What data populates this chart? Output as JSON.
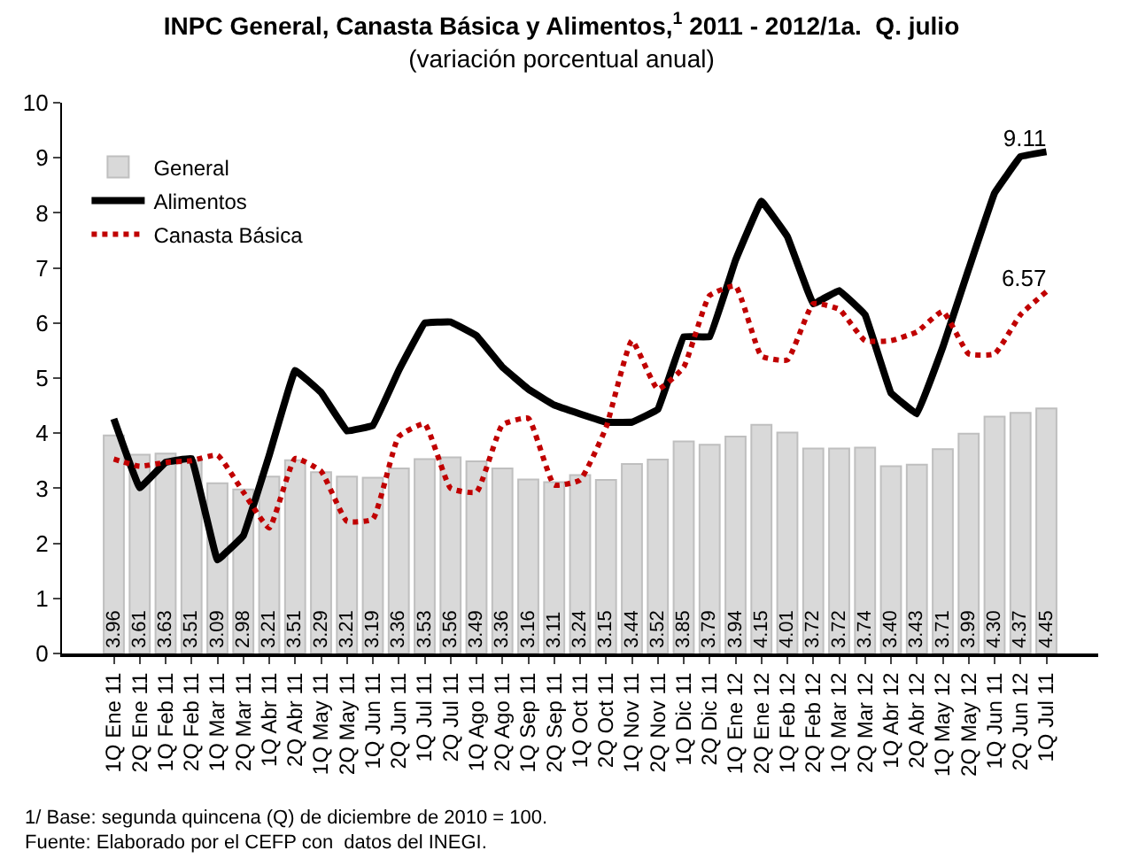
{
  "chart_data": {
    "type": "bar",
    "title": "INPC General, Canasta Básica y Alimentos,$^{1}$ 2011 - 2012/1a.  Q. julio",
    "subtitle": "(variación porcentual anual)",
    "categories": [
      "1Q Ene 11",
      "2Q Ene 11",
      "1Q Feb 11",
      "2Q Feb 11",
      "1Q Mar 11",
      "2Q Mar 11",
      "1Q Abr 11",
      "2Q Abr 11",
      "1Q May 11",
      "2Q May 11",
      "1Q Jun 11",
      "2Q Jun 11",
      "1Q Jul 11",
      "2Q Jul 11",
      "1Q Ago 11",
      "2Q Ago 11",
      "1Q Sep 11",
      "2Q Sep 11",
      "1Q Oct 11",
      "2Q Oct 11",
      "1Q Nov 11",
      "2Q Nov 11",
      "1Q Dic 11",
      "2Q Dic 11",
      "1Q Ene 12",
      "2Q Ene 12",
      "1Q Feb 12",
      "2Q Feb 12",
      "1Q Mar 12",
      "2Q Mar 12",
      "1Q Abr 12",
      "2Q Abr 12",
      "1Q May 12",
      "2Q May 12",
      "1Q Jun 11",
      "2Q Jun 12",
      "1Q Jul 11"
    ],
    "series": [
      {
        "name": "General",
        "color": "#d9d9d9",
        "values": [
          3.96,
          3.61,
          3.63,
          3.51,
          3.09,
          2.98,
          3.21,
          3.51,
          3.29,
          3.21,
          3.19,
          3.36,
          3.53,
          3.56,
          3.49,
          3.36,
          3.16,
          3.11,
          3.24,
          3.15,
          3.44,
          3.52,
          3.85,
          3.79,
          3.94,
          4.15,
          4.01,
          3.72,
          3.72,
          3.74,
          3.4,
          3.43,
          3.71,
          3.99,
          4.3,
          4.37,
          4.45
        ],
        "value_labels": [
          "3.96",
          "3.61",
          "3.63",
          "3.51",
          "3.09",
          "2.98",
          "3.21",
          "3.51",
          "3.29",
          "3.21",
          "3.19",
          "3.36",
          "3.53",
          "3.56",
          "3.49",
          "3.36",
          "3.16",
          "3.11",
          "3.24",
          "3.15",
          "3.44",
          "3.52",
          "3.85",
          "3.79",
          "3.94",
          "4.15",
          "4.01",
          "3.72",
          "3.72",
          "3.74",
          "3.40",
          "3.43",
          "3.71",
          "3.99",
          "4.30",
          "4.37",
          "4.45"
        ]
      },
      {
        "name": "Alimentos",
        "type": "line",
        "color": "#000000",
        "line_style": "solid",
        "values": [
          4.26,
          3.01,
          3.47,
          3.54,
          1.7,
          2.14,
          3.6,
          5.14,
          4.74,
          4.04,
          4.14,
          5.14,
          6.0,
          6.02,
          5.77,
          5.2,
          4.8,
          4.51,
          4.35,
          4.2,
          4.2,
          4.43,
          5.75,
          5.75,
          7.14,
          8.21,
          7.57,
          6.35,
          6.59,
          6.15,
          4.73,
          4.35,
          5.56,
          6.98,
          8.36,
          9.02,
          9.11
        ],
        "value_labels": [
          null,
          null,
          null,
          null,
          null,
          null,
          null,
          null,
          null,
          null,
          null,
          null,
          null,
          null,
          null,
          null,
          null,
          null,
          null,
          null,
          null,
          null,
          null,
          null,
          null,
          null,
          null,
          null,
          null,
          null,
          null,
          null,
          null,
          null,
          null,
          null,
          "9.11"
        ]
      },
      {
        "name": "Canasta Básica",
        "type": "line",
        "color": "#c00000",
        "line_style": "dotted",
        "values": [
          3.53,
          3.4,
          3.47,
          3.5,
          3.6,
          2.93,
          2.28,
          3.54,
          3.31,
          2.4,
          2.44,
          3.94,
          4.17,
          3.0,
          2.93,
          4.15,
          4.27,
          3.06,
          3.15,
          4.1,
          5.68,
          4.8,
          5.2,
          6.5,
          6.67,
          5.4,
          5.33,
          6.35,
          6.25,
          5.68,
          5.68,
          5.84,
          6.21,
          5.44,
          5.44,
          6.15,
          6.57
        ],
        "value_labels": [
          null,
          null,
          null,
          null,
          null,
          null,
          null,
          null,
          null,
          null,
          null,
          null,
          null,
          null,
          null,
          null,
          null,
          null,
          null,
          null,
          null,
          null,
          null,
          null,
          null,
          null,
          null,
          null,
          null,
          null,
          null,
          null,
          null,
          null,
          null,
          null,
          "6.57"
        ]
      }
    ],
    "ylim": [
      0,
      10
    ],
    "yticks": [
      0,
      1,
      2,
      3,
      4,
      5,
      6,
      7,
      8,
      9,
      10
    ],
    "legend": "top left",
    "annotations": [
      "1/ Base: segunda quincena (Q) de diciembre de 2010 = 100.",
      "Fuente: Elaborado por el CEFP con  datos del INEGI."
    ]
  }
}
